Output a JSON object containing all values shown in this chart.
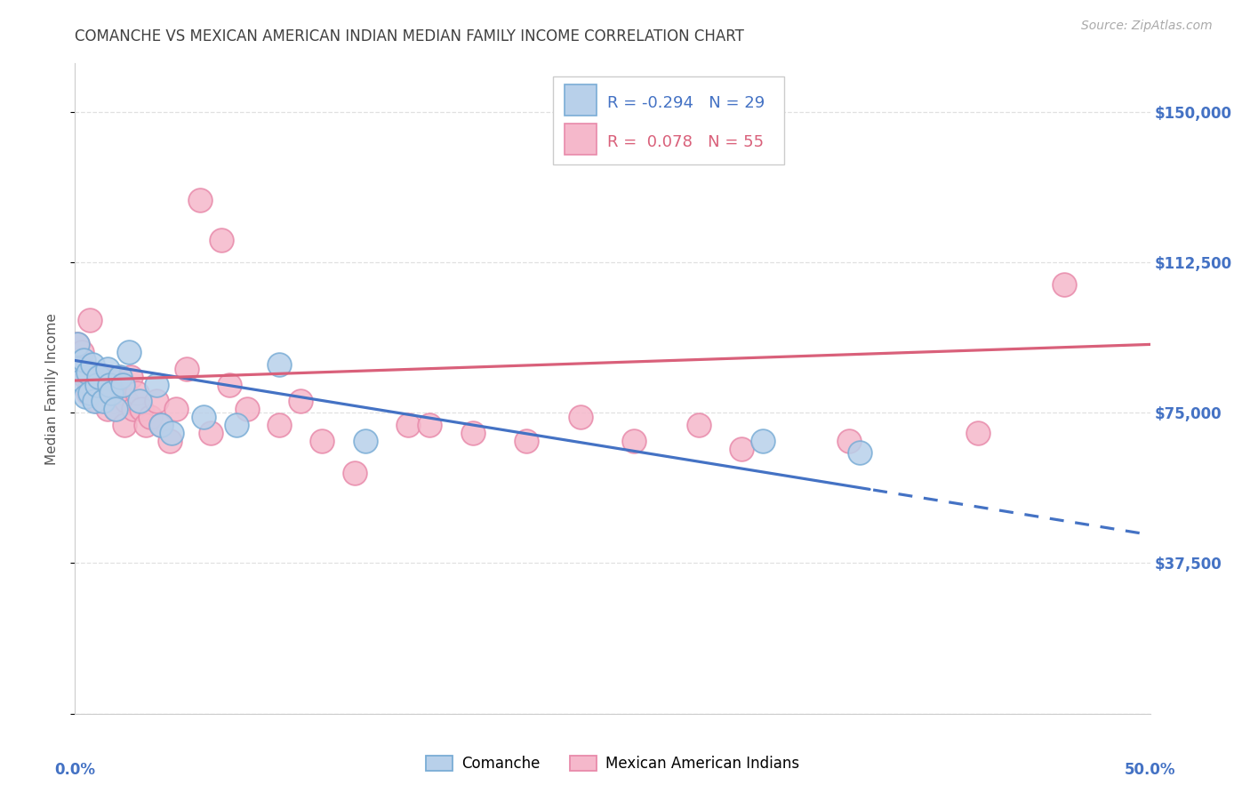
{
  "title": "COMANCHE VS MEXICAN AMERICAN INDIAN MEDIAN FAMILY INCOME CORRELATION CHART",
  "source": "Source: ZipAtlas.com",
  "ylabel": "Median Family Income",
  "ytick_values": [
    0,
    37500,
    75000,
    112500,
    150000
  ],
  "ytick_labels": [
    "",
    "$37,500",
    "$75,000",
    "$112,500",
    "$150,000"
  ],
  "xtick_values": [
    0.0,
    0.1,
    0.2,
    0.3,
    0.4,
    0.5
  ],
  "xlim": [
    0.0,
    0.5
  ],
  "ylim": [
    0,
    162000
  ],
  "r_comanche": "-0.294",
  "n_comanche": "29",
  "r_mexican": "0.078",
  "n_mexican": "55",
  "legend_label1": "Comanche",
  "legend_label2": "Mexican American Indians",
  "comanche_color": "#b8d0ea",
  "mexican_color": "#f5b8cb",
  "comanche_edge": "#7aadd6",
  "mexican_edge": "#e88aaa",
  "trendline_comanche": "#4472c4",
  "trendline_mexican": "#d9607a",
  "background_color": "#ffffff",
  "grid_color": "#e0e0e0",
  "title_color": "#404040",
  "axis_label_color": "#4472c4",
  "comanche_x": [
    0.001,
    0.002,
    0.003,
    0.004,
    0.005,
    0.006,
    0.007,
    0.008,
    0.009,
    0.01,
    0.011,
    0.013,
    0.015,
    0.016,
    0.017,
    0.019,
    0.021,
    0.022,
    0.025,
    0.03,
    0.038,
    0.04,
    0.045,
    0.06,
    0.075,
    0.095,
    0.135,
    0.32,
    0.365
  ],
  "comanche_y": [
    92000,
    86000,
    83000,
    88000,
    79000,
    85000,
    80000,
    87000,
    78000,
    82000,
    84000,
    78000,
    86000,
    82000,
    80000,
    76000,
    84000,
    82000,
    90000,
    78000,
    82000,
    72000,
    70000,
    74000,
    72000,
    87000,
    68000,
    68000,
    65000
  ],
  "mexican_x": [
    0.001,
    0.002,
    0.003,
    0.004,
    0.005,
    0.006,
    0.007,
    0.007,
    0.008,
    0.009,
    0.01,
    0.011,
    0.012,
    0.013,
    0.014,
    0.015,
    0.016,
    0.017,
    0.018,
    0.019,
    0.02,
    0.022,
    0.023,
    0.024,
    0.026,
    0.027,
    0.029,
    0.031,
    0.033,
    0.035,
    0.038,
    0.04,
    0.044,
    0.047,
    0.052,
    0.058,
    0.063,
    0.068,
    0.072,
    0.08,
    0.095,
    0.105,
    0.115,
    0.13,
    0.155,
    0.165,
    0.185,
    0.21,
    0.235,
    0.26,
    0.29,
    0.31,
    0.36,
    0.42,
    0.46
  ],
  "mexican_y": [
    92000,
    88000,
    90000,
    86000,
    84000,
    80000,
    83000,
    98000,
    82000,
    80000,
    78000,
    82000,
    84000,
    80000,
    78000,
    76000,
    80000,
    82000,
    78000,
    76000,
    84000,
    80000,
    72000,
    78000,
    84000,
    76000,
    80000,
    76000,
    72000,
    74000,
    78000,
    72000,
    68000,
    76000,
    86000,
    128000,
    70000,
    118000,
    82000,
    76000,
    72000,
    78000,
    68000,
    60000,
    72000,
    72000,
    70000,
    68000,
    74000,
    68000,
    72000,
    66000,
    68000,
    70000,
    107000
  ]
}
